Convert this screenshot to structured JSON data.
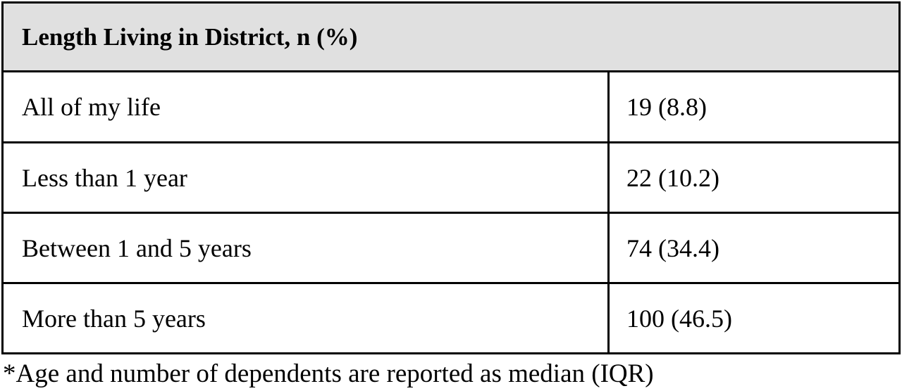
{
  "table": {
    "header": "Length Living in District, n (%)",
    "rows": [
      [
        "All of my life",
        "19 (8.8)"
      ],
      [
        "Less than 1 year",
        "22 (10.2)"
      ],
      [
        "Between 1 and 5 years",
        "74 (34.4)"
      ],
      [
        "More than 5 years",
        "100 (46.5)"
      ]
    ]
  },
  "footnote": "*Age and number of dependents are reported as median (IQR)"
}
